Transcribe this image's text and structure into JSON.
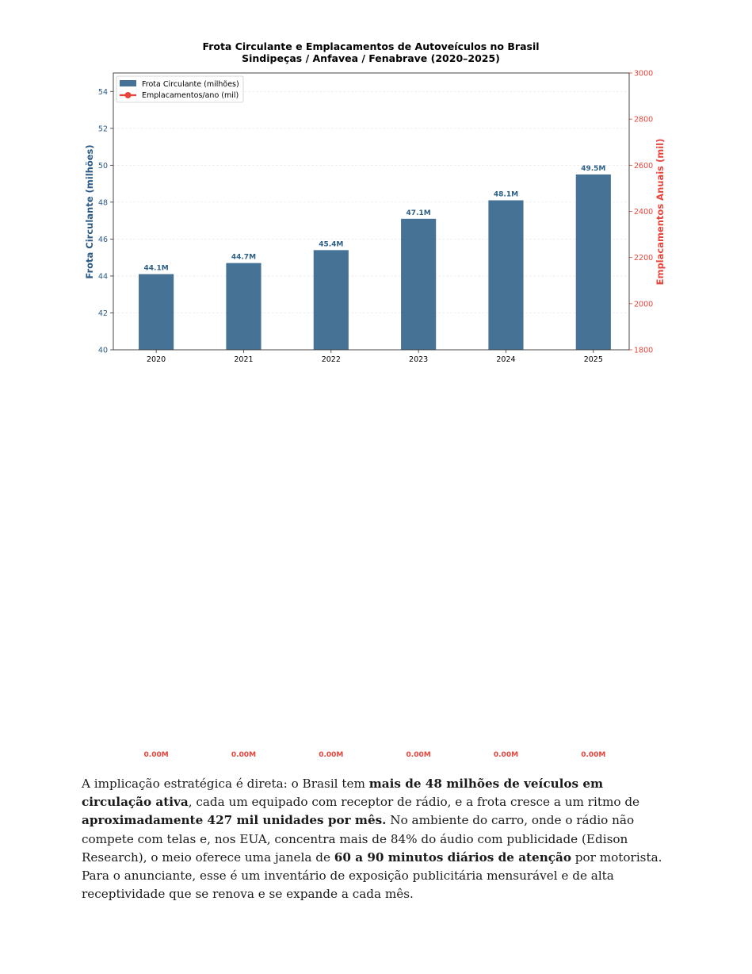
{
  "chart_data": {
    "type": "bar",
    "title": "Frota Circulante e Emplacamentos de Autoveículos no Brasil",
    "subtitle": "Sindipeças / Anfavea / Fenabrave (2020–2025)",
    "categories": [
      "2020",
      "2021",
      "2022",
      "2023",
      "2024",
      "2025"
    ],
    "series": [
      {
        "name": "Frota Circulante (milhões)",
        "type": "bar",
        "axis": "left",
        "values": [
          44.1,
          44.7,
          45.4,
          47.1,
          48.1,
          49.5
        ],
        "labels": [
          "44.1M",
          "44.7M",
          "45.4M",
          "47.1M",
          "48.1M",
          "49.5M"
        ],
        "color": "#2c5f86"
      },
      {
        "name": "Emplacamentos/ano (mil)",
        "type": "line",
        "axis": "right",
        "values": [
          0,
          0,
          0,
          0,
          0,
          0
        ],
        "labels": [
          "0.00M",
          "0.00M",
          "0.00M",
          "0.00M",
          "0.00M",
          "0.00M"
        ],
        "color": "#e8453c"
      }
    ],
    "ylabel": "Frota Circulante (milhões)",
    "ylim": [
      40,
      55
    ],
    "yticks": [
      40,
      42,
      44,
      46,
      48,
      50,
      52,
      54
    ],
    "y2label": "Emplacamentos Anuais (mil)",
    "y2lim": [
      1800,
      3000
    ],
    "y2ticks": [
      1800,
      2000,
      2200,
      2400,
      2600,
      2800,
      3000
    ],
    "grid": true,
    "legend": "top-left",
    "left_axis_color": "#2a5a85",
    "right_axis_color": "#e8453c"
  },
  "paragraph": [
    {
      "text": "A implicação estratégica é direta: o Brasil tem ",
      "bold": false
    },
    {
      "text": "mais de 48 milhões de veículos em circulação ativa",
      "bold": true
    },
    {
      "text": ", cada um equipado com receptor de rádio, e a frota cresce a um ritmo de ",
      "bold": false
    },
    {
      "text": "aproximadamente 427 mil unidades por mês.",
      "bold": true
    },
    {
      "text": " No ambiente do carro, onde o rádio não compete com telas e, nos EUA, concentra mais de 84% do áudio com publicidade (Edison Research), o meio oferece uma janela de ",
      "bold": false
    },
    {
      "text": "60 a 90 minutos diários de atenção",
      "bold": true
    },
    {
      "text": " por motorista. Para o anunciante, esse é um inventário de exposição publicitária mensurável e de alta receptividade que se renova e se expande a cada mês.",
      "bold": false
    }
  ]
}
